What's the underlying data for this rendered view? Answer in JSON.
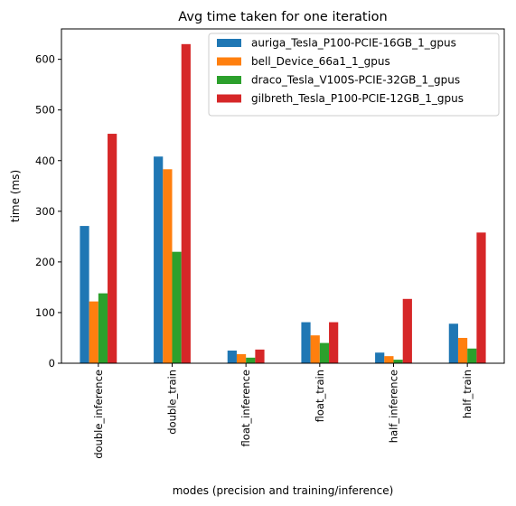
{
  "chart_data": {
    "type": "bar",
    "title": "Avg time taken for one iteration",
    "xlabel": "modes (precision and training/inference)",
    "ylabel": "time (ms)",
    "ylim": [
      0,
      660
    ],
    "yticks": [
      0,
      100,
      200,
      300,
      400,
      500,
      600
    ],
    "grid": false,
    "legend_position": "top-right",
    "categories": [
      "double_inference",
      "double_train",
      "float_inference",
      "float_train",
      "half_inference",
      "half_train"
    ],
    "series": [
      {
        "name": "auriga_Tesla_P100-PCIE-16GB_1_gpus",
        "color": "#1f77b4",
        "values": [
          271,
          408,
          25,
          81,
          21,
          78
        ]
      },
      {
        "name": "bell_Device_66a1_1_gpus",
        "color": "#ff7f0e",
        "values": [
          122,
          383,
          18,
          55,
          14,
          50
        ]
      },
      {
        "name": "draco_Tesla_V100S-PCIE-32GB_1_gpus",
        "color": "#2ca02c",
        "values": [
          138,
          220,
          11,
          40,
          7,
          29
        ]
      },
      {
        "name": "gilbreth_Tesla_P100-PCIE-12GB_1_gpus",
        "color": "#d62728",
        "values": [
          453,
          630,
          27,
          81,
          127,
          258
        ]
      }
    ]
  }
}
